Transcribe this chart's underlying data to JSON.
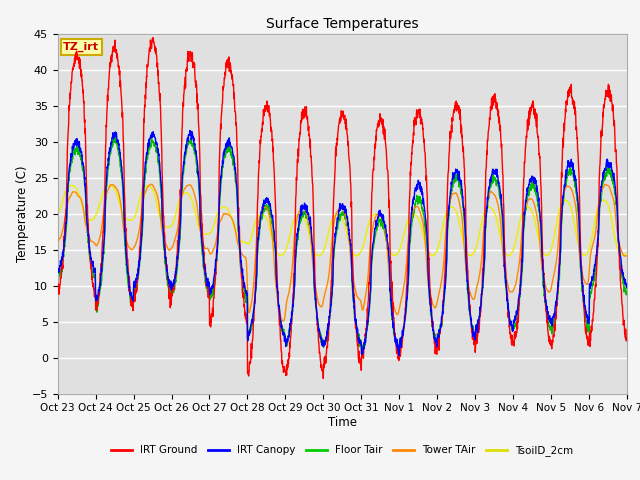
{
  "title": "Surface Temperatures",
  "xlabel": "Time",
  "ylabel": "Temperature (C)",
  "ylim": [
    -5,
    45
  ],
  "background_color": "#e0e0e0",
  "grid_color": "#ffffff",
  "tick_labels": [
    "Oct 23",
    "Oct 24",
    "Oct 25",
    "Oct 26",
    "Oct 27",
    "Oct 28",
    "Oct 29",
    "Oct 30",
    "Oct 31",
    "Nov 1",
    "Nov 2",
    "Nov 3",
    "Nov 4",
    "Nov 5",
    "Nov 6",
    "Nov 7"
  ],
  "legend_entries": [
    "IRT Ground",
    "IRT Canopy",
    "Floor Tair",
    "Tower TAir",
    "TsoilD_2cm"
  ],
  "legend_colors": [
    "#ff0000",
    "#0000ff",
    "#00cc00",
    "#ff8800",
    "#dddd00"
  ],
  "annotation_text": "TZ_irt",
  "annotation_color": "#cc0000",
  "annotation_bg": "#ffffaa",
  "annotation_border": "#ccaa00",
  "series_colors": {
    "irt_ground": "#ff0000",
    "irt_canopy": "#0000ff",
    "floor_tair": "#00bb00",
    "tower_tair": "#ff8800",
    "tsoil_2cm": "#eeee00"
  },
  "n_days": 15,
  "samples_per_day": 144
}
